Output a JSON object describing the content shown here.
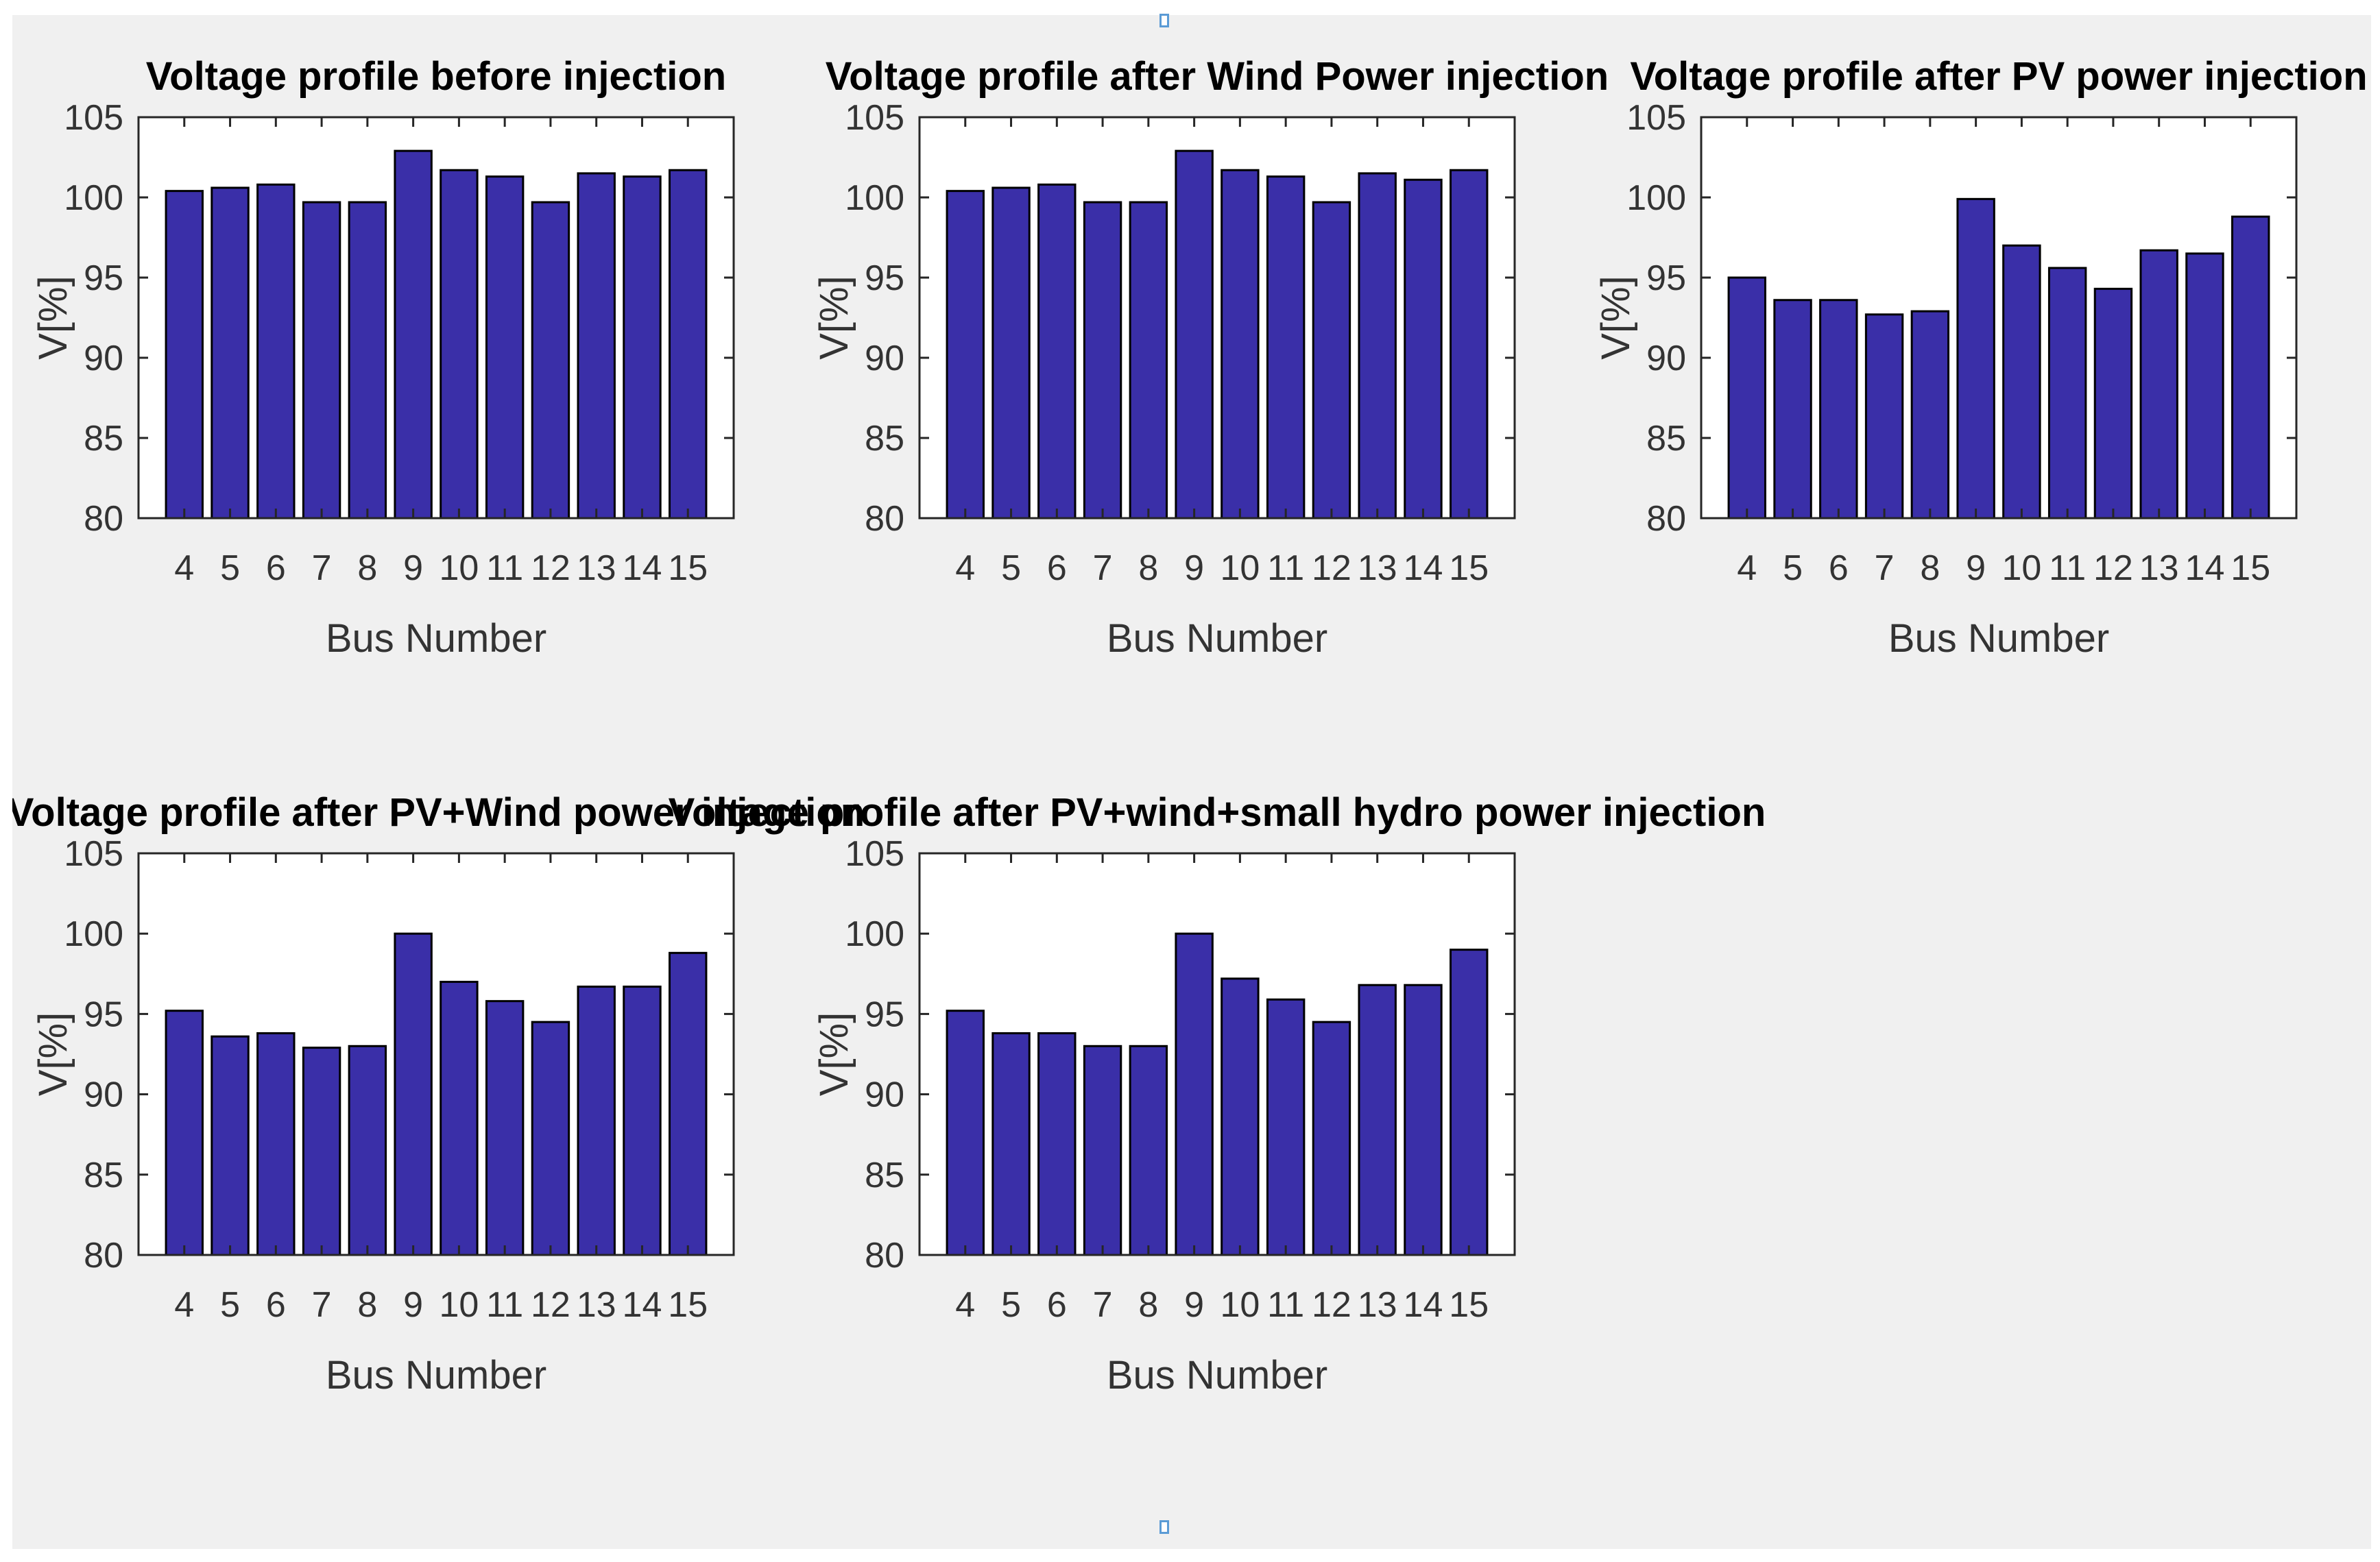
{
  "chart_data": [
    {
      "type": "bar",
      "title": "Voltage profile before injection",
      "xlabel": "Bus Number",
      "ylabel": "V[%]",
      "ylim": [
        80,
        105
      ],
      "yticks": [
        "80",
        "85",
        "90",
        "95",
        "100",
        "105"
      ],
      "categories": [
        "4",
        "5",
        "6",
        "7",
        "8",
        "9",
        "10",
        "11",
        "12",
        "13",
        "14",
        "15"
      ],
      "values": [
        100.4,
        100.6,
        100.8,
        99.7,
        99.7,
        102.9,
        101.7,
        101.3,
        99.7,
        101.5,
        101.3,
        101.7
      ]
    },
    {
      "type": "bar",
      "title": "Voltage profile after Wind Power injection",
      "xlabel": "Bus Number",
      "ylabel": "V[%]",
      "ylim": [
        80,
        105
      ],
      "yticks": [
        "80",
        "85",
        "90",
        "95",
        "100",
        "105"
      ],
      "categories": [
        "4",
        "5",
        "6",
        "7",
        "8",
        "9",
        "10",
        "11",
        "12",
        "13",
        "14",
        "15"
      ],
      "values": [
        100.4,
        100.6,
        100.8,
        99.7,
        99.7,
        102.9,
        101.7,
        101.3,
        99.7,
        101.5,
        101.1,
        101.7
      ]
    },
    {
      "type": "bar",
      "title": "Voltage profile after PV power injection",
      "xlabel": "Bus Number",
      "ylabel": "V[%]",
      "ylim": [
        80,
        105
      ],
      "yticks": [
        "80",
        "85",
        "90",
        "95",
        "100",
        "105"
      ],
      "categories": [
        "4",
        "5",
        "6",
        "7",
        "8",
        "9",
        "10",
        "11",
        "12",
        "13",
        "14",
        "15"
      ],
      "values": [
        95.0,
        93.6,
        93.6,
        92.7,
        92.9,
        99.9,
        97.0,
        95.6,
        94.3,
        96.7,
        96.5,
        98.8
      ]
    },
    {
      "type": "bar",
      "title": "Voltage profile after PV+Wind power injection",
      "xlabel": "Bus Number",
      "ylabel": "V[%]",
      "ylim": [
        80,
        105
      ],
      "yticks": [
        "80",
        "85",
        "90",
        "95",
        "100",
        "105"
      ],
      "categories": [
        "4",
        "5",
        "6",
        "7",
        "8",
        "9",
        "10",
        "11",
        "12",
        "13",
        "14",
        "15"
      ],
      "values": [
        95.2,
        93.6,
        93.8,
        92.9,
        93.0,
        100.0,
        97.0,
        95.8,
        94.5,
        96.7,
        96.7,
        98.8
      ]
    },
    {
      "type": "bar",
      "title": "Voltage profile after PV+wind+small hydro power injection",
      "xlabel": "Bus Number",
      "ylabel": "V[%]",
      "ylim": [
        80,
        105
      ],
      "yticks": [
        "80",
        "85",
        "90",
        "95",
        "100",
        "105"
      ],
      "categories": [
        "4",
        "5",
        "6",
        "7",
        "8",
        "9",
        "10",
        "11",
        "12",
        "13",
        "14",
        "15"
      ],
      "values": [
        95.2,
        93.8,
        93.8,
        93.0,
        93.0,
        100.0,
        97.2,
        95.9,
        94.5,
        96.8,
        96.8,
        99.0
      ]
    }
  ],
  "colors": {
    "bar_fill": "#3a2fa8",
    "bar_edge": "#000000",
    "axes_bg": "#ffffff",
    "figure_bg": "#f0f0f0"
  }
}
